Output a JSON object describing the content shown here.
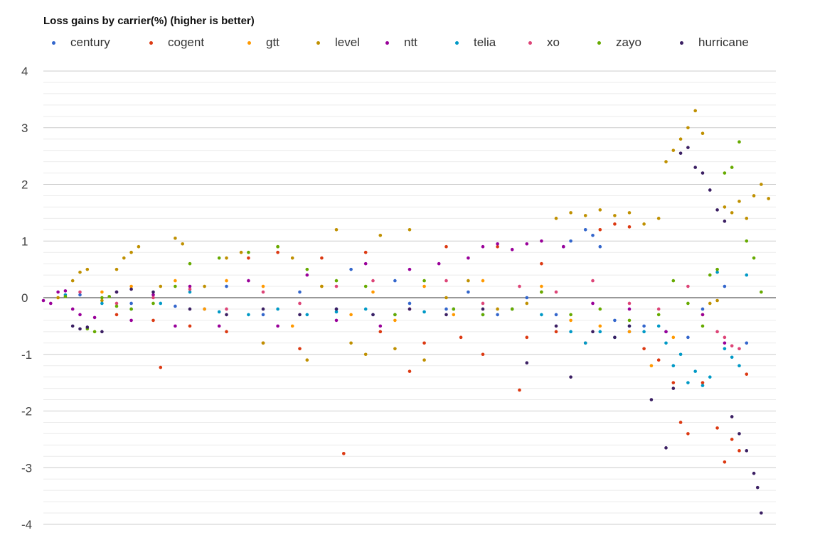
{
  "chart_data": {
    "type": "scatter",
    "title": "Loss gains by carrier(%) (higher is better)",
    "ylim": [
      -4,
      4
    ],
    "y_ticks": [
      "4",
      "3",
      "2",
      "1",
      "0",
      "-1",
      "-2",
      "-3",
      "-4"
    ],
    "y_minor_step": 0.2,
    "zero_line": true,
    "legend_position": "top",
    "x_range": [
      0,
      100
    ],
    "series": [
      {
        "name": "century",
        "color": "#3366cc"
      },
      {
        "name": "cogent",
        "color": "#dc3912"
      },
      {
        "name": "gtt",
        "color": "#ff9900"
      },
      {
        "name": "level",
        "color": "#bf9000"
      },
      {
        "name": "ntt",
        "color": "#990099"
      },
      {
        "name": "telia",
        "color": "#0099c6"
      },
      {
        "name": "xo",
        "color": "#dd4477"
      },
      {
        "name": "zayo",
        "color": "#66aa00"
      },
      {
        "name": "hurricane",
        "color": "#3b1f63"
      }
    ],
    "points": {
      "century": [
        [
          5,
          0.05
        ],
        [
          12,
          -0.1
        ],
        [
          18,
          -0.15
        ],
        [
          22,
          -0.2
        ],
        [
          25,
          0.2
        ],
        [
          30,
          -0.3
        ],
        [
          35,
          0.1
        ],
        [
          40,
          -0.2
        ],
        [
          42,
          0.5
        ],
        [
          45,
          -0.3
        ],
        [
          48,
          0.3
        ],
        [
          50,
          -0.1
        ],
        [
          55,
          -0.2
        ],
        [
          58,
          0.1
        ],
        [
          62,
          -0.3
        ],
        [
          66,
          0.0
        ],
        [
          70,
          -0.3
        ],
        [
          71,
          0.9
        ],
        [
          72,
          1.0
        ],
        [
          74,
          1.2
        ],
        [
          75,
          1.1
        ],
        [
          76,
          0.9
        ],
        [
          78,
          -0.4
        ],
        [
          80,
          -0.6
        ],
        [
          82,
          -0.5
        ],
        [
          85,
          -0.6
        ],
        [
          88,
          -0.7
        ],
        [
          90,
          -0.2
        ],
        [
          93,
          0.2
        ],
        [
          96,
          -0.8
        ]
      ],
      "cogent": [
        [
          10,
          -0.3
        ],
        [
          15,
          -0.4
        ],
        [
          16,
          -1.23
        ],
        [
          20,
          -0.5
        ],
        [
          25,
          -0.6
        ],
        [
          28,
          0.7
        ],
        [
          30,
          -0.8
        ],
        [
          32,
          0.8
        ],
        [
          35,
          -0.9
        ],
        [
          38,
          0.7
        ],
        [
          41,
          -2.75
        ],
        [
          44,
          0.8
        ],
        [
          46,
          -0.6
        ],
        [
          50,
          -1.3
        ],
        [
          52,
          -0.8
        ],
        [
          55,
          0.9
        ],
        [
          57,
          -0.7
        ],
        [
          60,
          -1.0
        ],
        [
          62,
          0.9
        ],
        [
          65,
          -1.63
        ],
        [
          66,
          -0.7
        ],
        [
          68,
          0.6
        ],
        [
          70,
          -0.6
        ],
        [
          74,
          -0.8
        ],
        [
          76,
          1.2
        ],
        [
          78,
          1.3
        ],
        [
          80,
          1.25
        ],
        [
          82,
          -0.9
        ],
        [
          84,
          -1.1
        ],
        [
          86,
          -1.5
        ],
        [
          87,
          -2.2
        ],
        [
          88,
          -2.4
        ],
        [
          90,
          -1.5
        ],
        [
          92,
          -2.3
        ],
        [
          93,
          -2.9
        ],
        [
          94,
          -2.5
        ],
        [
          95,
          -2.7
        ],
        [
          96,
          -1.35
        ]
      ],
      "gtt": [
        [
          2,
          0.0
        ],
        [
          8,
          0.1
        ],
        [
          12,
          0.2
        ],
        [
          18,
          0.3
        ],
        [
          22,
          -0.2
        ],
        [
          25,
          0.3
        ],
        [
          30,
          0.2
        ],
        [
          34,
          -0.5
        ],
        [
          38,
          0.2
        ],
        [
          42,
          -0.3
        ],
        [
          45,
          0.1
        ],
        [
          48,
          -0.4
        ],
        [
          52,
          0.2
        ],
        [
          56,
          -0.3
        ],
        [
          60,
          0.3
        ],
        [
          64,
          -0.2
        ],
        [
          68,
          0.2
        ],
        [
          72,
          -0.4
        ],
        [
          76,
          -0.5
        ],
        [
          80,
          -0.6
        ],
        [
          83,
          -1.2
        ],
        [
          86,
          -0.7
        ],
        [
          90,
          -0.3
        ]
      ],
      "level": [
        [
          2,
          0.0
        ],
        [
          4,
          0.3
        ],
        [
          5,
          0.45
        ],
        [
          6,
          0.5
        ],
        [
          8,
          -0.05
        ],
        [
          10,
          0.5
        ],
        [
          11,
          0.7
        ],
        [
          12,
          0.8
        ],
        [
          13,
          0.9
        ],
        [
          16,
          0.2
        ],
        [
          18,
          1.05
        ],
        [
          19,
          0.95
        ],
        [
          22,
          0.2
        ],
        [
          25,
          0.7
        ],
        [
          27,
          0.8
        ],
        [
          30,
          -0.8
        ],
        [
          32,
          0.9
        ],
        [
          34,
          0.7
        ],
        [
          36,
          -1.1
        ],
        [
          38,
          0.2
        ],
        [
          40,
          1.2
        ],
        [
          42,
          -0.8
        ],
        [
          44,
          -1.0
        ],
        [
          46,
          1.1
        ],
        [
          48,
          -0.9
        ],
        [
          50,
          1.2
        ],
        [
          52,
          -1.1
        ],
        [
          55,
          0.0
        ],
        [
          58,
          0.3
        ],
        [
          62,
          -0.2
        ],
        [
          66,
          -0.1
        ],
        [
          68,
          0.1
        ],
        [
          70,
          1.4
        ],
        [
          72,
          1.5
        ],
        [
          74,
          1.45
        ],
        [
          76,
          1.55
        ],
        [
          78,
          1.45
        ],
        [
          80,
          1.5
        ],
        [
          82,
          1.3
        ],
        [
          84,
          1.4
        ],
        [
          85,
          2.4
        ],
        [
          86,
          2.6
        ],
        [
          87,
          2.8
        ],
        [
          88,
          3.0
        ],
        [
          89,
          3.3
        ],
        [
          90,
          2.9
        ],
        [
          91,
          -0.1
        ],
        [
          92,
          -0.05
        ],
        [
          93,
          1.6
        ],
        [
          94,
          1.5
        ],
        [
          95,
          1.7
        ],
        [
          96,
          1.4
        ],
        [
          97,
          1.8
        ],
        [
          98,
          2.0
        ],
        [
          99,
          1.75
        ]
      ],
      "ntt": [
        [
          0,
          -0.05
        ],
        [
          1,
          -0.1
        ],
        [
          2,
          0.1
        ],
        [
          3,
          0.12
        ],
        [
          4,
          -0.2
        ],
        [
          5,
          -0.3
        ],
        [
          7,
          -0.35
        ],
        [
          10,
          0.1
        ],
        [
          12,
          -0.4
        ],
        [
          15,
          0.05
        ],
        [
          18,
          -0.5
        ],
        [
          20,
          0.2
        ],
        [
          24,
          -0.5
        ],
        [
          28,
          0.3
        ],
        [
          32,
          -0.5
        ],
        [
          36,
          0.4
        ],
        [
          40,
          -0.4
        ],
        [
          44,
          0.6
        ],
        [
          46,
          -0.5
        ],
        [
          50,
          0.5
        ],
        [
          54,
          0.6
        ],
        [
          58,
          0.7
        ],
        [
          60,
          0.9
        ],
        [
          62,
          0.95
        ],
        [
          64,
          0.85
        ],
        [
          66,
          0.95
        ],
        [
          68,
          1.0
        ],
        [
          71,
          0.9
        ],
        [
          75,
          -0.1
        ],
        [
          80,
          -0.2
        ],
        [
          85,
          -0.6
        ],
        [
          90,
          -0.3
        ],
        [
          93,
          -0.8
        ]
      ],
      "telia": [
        [
          3,
          0.05
        ],
        [
          8,
          -0.1
        ],
        [
          12,
          -0.2
        ],
        [
          16,
          -0.1
        ],
        [
          20,
          0.1
        ],
        [
          24,
          -0.25
        ],
        [
          28,
          -0.3
        ],
        [
          32,
          -0.2
        ],
        [
          36,
          -0.3
        ],
        [
          40,
          -0.25
        ],
        [
          44,
          -0.2
        ],
        [
          48,
          -0.3
        ],
        [
          52,
          -0.25
        ],
        [
          56,
          -0.2
        ],
        [
          60,
          -0.3
        ],
        [
          64,
          -0.2
        ],
        [
          68,
          -0.3
        ],
        [
          72,
          -0.6
        ],
        [
          74,
          -0.8
        ],
        [
          76,
          -0.6
        ],
        [
          78,
          -0.7
        ],
        [
          80,
          -0.5
        ],
        [
          82,
          -0.6
        ],
        [
          84,
          -0.5
        ],
        [
          85,
          -0.8
        ],
        [
          86,
          -1.2
        ],
        [
          87,
          -1.0
        ],
        [
          88,
          -1.5
        ],
        [
          89,
          -1.3
        ],
        [
          90,
          -1.55
        ],
        [
          91,
          -1.4
        ],
        [
          92,
          0.45
        ],
        [
          93,
          -0.9
        ],
        [
          94,
          -1.05
        ],
        [
          95,
          -1.2
        ],
        [
          96,
          0.4
        ]
      ],
      "xo": [
        [
          5,
          0.1
        ],
        [
          10,
          -0.1
        ],
        [
          15,
          0.0
        ],
        [
          20,
          0.15
        ],
        [
          25,
          -0.2
        ],
        [
          30,
          0.1
        ],
        [
          35,
          -0.1
        ],
        [
          40,
          0.2
        ],
        [
          45,
          0.3
        ],
        [
          50,
          -0.2
        ],
        [
          55,
          0.3
        ],
        [
          60,
          -0.1
        ],
        [
          65,
          0.2
        ],
        [
          70,
          0.1
        ],
        [
          75,
          0.3
        ],
        [
          80,
          -0.1
        ],
        [
          84,
          -0.2
        ],
        [
          88,
          0.2
        ],
        [
          92,
          -0.6
        ],
        [
          93,
          -0.7
        ],
        [
          94,
          -0.85
        ],
        [
          95,
          -0.9
        ]
      ],
      "zayo": [
        [
          3,
          0.02
        ],
        [
          6,
          -0.55
        ],
        [
          7,
          -0.6
        ],
        [
          8,
          0.0
        ],
        [
          9,
          0.02
        ],
        [
          10,
          -0.15
        ],
        [
          12,
          -0.2
        ],
        [
          15,
          -0.1
        ],
        [
          18,
          0.2
        ],
        [
          20,
          0.6
        ],
        [
          24,
          0.7
        ],
        [
          28,
          0.8
        ],
        [
          32,
          0.9
        ],
        [
          36,
          0.5
        ],
        [
          40,
          0.3
        ],
        [
          44,
          0.2
        ],
        [
          48,
          -0.3
        ],
        [
          52,
          0.3
        ],
        [
          56,
          -0.2
        ],
        [
          60,
          -0.3
        ],
        [
          64,
          -0.2
        ],
        [
          68,
          0.1
        ],
        [
          72,
          -0.3
        ],
        [
          76,
          -0.2
        ],
        [
          80,
          -0.4
        ],
        [
          84,
          -0.3
        ],
        [
          86,
          0.3
        ],
        [
          88,
          -0.1
        ],
        [
          90,
          -0.5
        ],
        [
          91,
          0.4
        ],
        [
          92,
          0.5
        ],
        [
          93,
          2.2
        ],
        [
          94,
          2.3
        ],
        [
          95,
          2.75
        ],
        [
          96,
          1.0
        ],
        [
          97,
          0.7
        ],
        [
          98,
          0.1
        ]
      ],
      "hurricane": [
        [
          4,
          -0.5
        ],
        [
          5,
          -0.55
        ],
        [
          6,
          -0.52
        ],
        [
          8,
          -0.6
        ],
        [
          10,
          0.1
        ],
        [
          12,
          0.15
        ],
        [
          15,
          0.1
        ],
        [
          20,
          -0.2
        ],
        [
          25,
          -0.3
        ],
        [
          30,
          -0.2
        ],
        [
          35,
          -0.3
        ],
        [
          40,
          -0.2
        ],
        [
          45,
          -0.3
        ],
        [
          50,
          -0.2
        ],
        [
          55,
          -0.3
        ],
        [
          60,
          -0.2
        ],
        [
          66,
          -1.15
        ],
        [
          70,
          -0.5
        ],
        [
          72,
          -1.4
        ],
        [
          75,
          -0.6
        ],
        [
          78,
          -0.7
        ],
        [
          80,
          -0.5
        ],
        [
          83,
          -1.8
        ],
        [
          85,
          -2.65
        ],
        [
          86,
          -1.6
        ],
        [
          87,
          2.55
        ],
        [
          88,
          2.65
        ],
        [
          89,
          2.3
        ],
        [
          90,
          2.2
        ],
        [
          91,
          1.9
        ],
        [
          92,
          1.55
        ],
        [
          93,
          1.35
        ],
        [
          94,
          -2.1
        ],
        [
          95,
          -2.4
        ],
        [
          96,
          -2.7
        ],
        [
          97,
          -3.1
        ],
        [
          97.5,
          -3.35
        ],
        [
          98,
          -3.8
        ]
      ]
    }
  }
}
